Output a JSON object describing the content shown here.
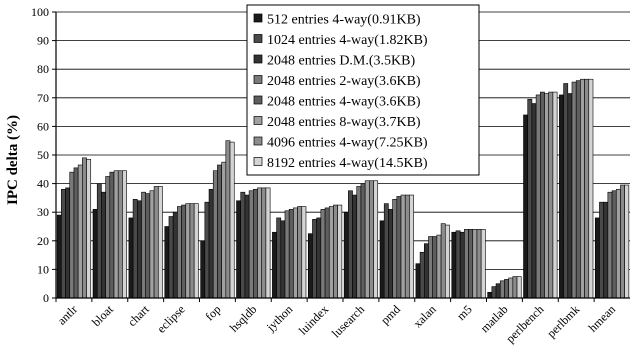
{
  "chart_data": {
    "type": "bar",
    "ylabel": "IPC delta (%)",
    "ylim": [
      0,
      100
    ],
    "yticks": [
      0,
      10,
      20,
      30,
      40,
      50,
      60,
      70,
      80,
      90,
      100
    ],
    "grid": true,
    "legend_position": "top-center",
    "categories": [
      "antlr",
      "bloat",
      "chart",
      "eclipse",
      "fop",
      "hsqldb",
      "jython",
      "luindex",
      "lusearch",
      "pmd",
      "xalan",
      "m5",
      "matlab",
      "perlbench",
      "perlbmk",
      "hmean"
    ],
    "series": [
      {
        "name": "512 entries 4-way(0.91KB)",
        "color": "#1a1a1a",
        "values": [
          29,
          31,
          28,
          25,
          20,
          34,
          23,
          22.5,
          30,
          27,
          12,
          23,
          2,
          64,
          71,
          28
        ]
      },
      {
        "name": "1024 entries 4-way(1.82KB)",
        "color": "#4a4a4a",
        "values": [
          38,
          40,
          34.5,
          28.5,
          33.5,
          37,
          28,
          27.5,
          37.5,
          33,
          16,
          23.5,
          4,
          69.5,
          75,
          33.5
        ]
      },
      {
        "name": "2048 entries D.M.(3.5KB)",
        "color": "#333333",
        "values": [
          38.5,
          37,
          34,
          30,
          38,
          36,
          27,
          28,
          36,
          31,
          19,
          23,
          5,
          68,
          71.5,
          33.5
        ]
      },
      {
        "name": "2048 entries 2-way(3.6KB)",
        "color": "#7a7a7a",
        "values": [
          44,
          42.5,
          37,
          32,
          44.5,
          37.5,
          30.5,
          31,
          39,
          34.5,
          21.5,
          24,
          6,
          71,
          75.5,
          37
        ]
      },
      {
        "name": "2048 entries 4-way(3.6KB)",
        "color": "#5e5e5e",
        "values": [
          45.5,
          44,
          36.5,
          32.5,
          46.5,
          38,
          31,
          31.5,
          40,
          35.5,
          21.5,
          24,
          6.5,
          72,
          76,
          37.5
        ]
      },
      {
        "name": "2048 entries 8-way(3.7KB)",
        "color": "#a0a0a0",
        "values": [
          46.5,
          44.5,
          37.5,
          33,
          47.5,
          38.5,
          31.5,
          32,
          41,
          36,
          22,
          24,
          7,
          71.5,
          76.5,
          38
        ]
      },
      {
        "name": "4096 entries 4-way(7.25KB)",
        "color": "#8c8c8c",
        "values": [
          49,
          44.5,
          39,
          33,
          55,
          38.5,
          32,
          32.5,
          41,
          36,
          26,
          24,
          7.5,
          72,
          76.5,
          39.5
        ]
      },
      {
        "name": "8192 entries 4-way(14.5KB)",
        "color": "#d4d4d4",
        "values": [
          48.5,
          44.5,
          39,
          33,
          54.5,
          38.5,
          32,
          32.5,
          41,
          36,
          25.5,
          24,
          7.5,
          72,
          76.5,
          39.5
        ]
      }
    ]
  }
}
